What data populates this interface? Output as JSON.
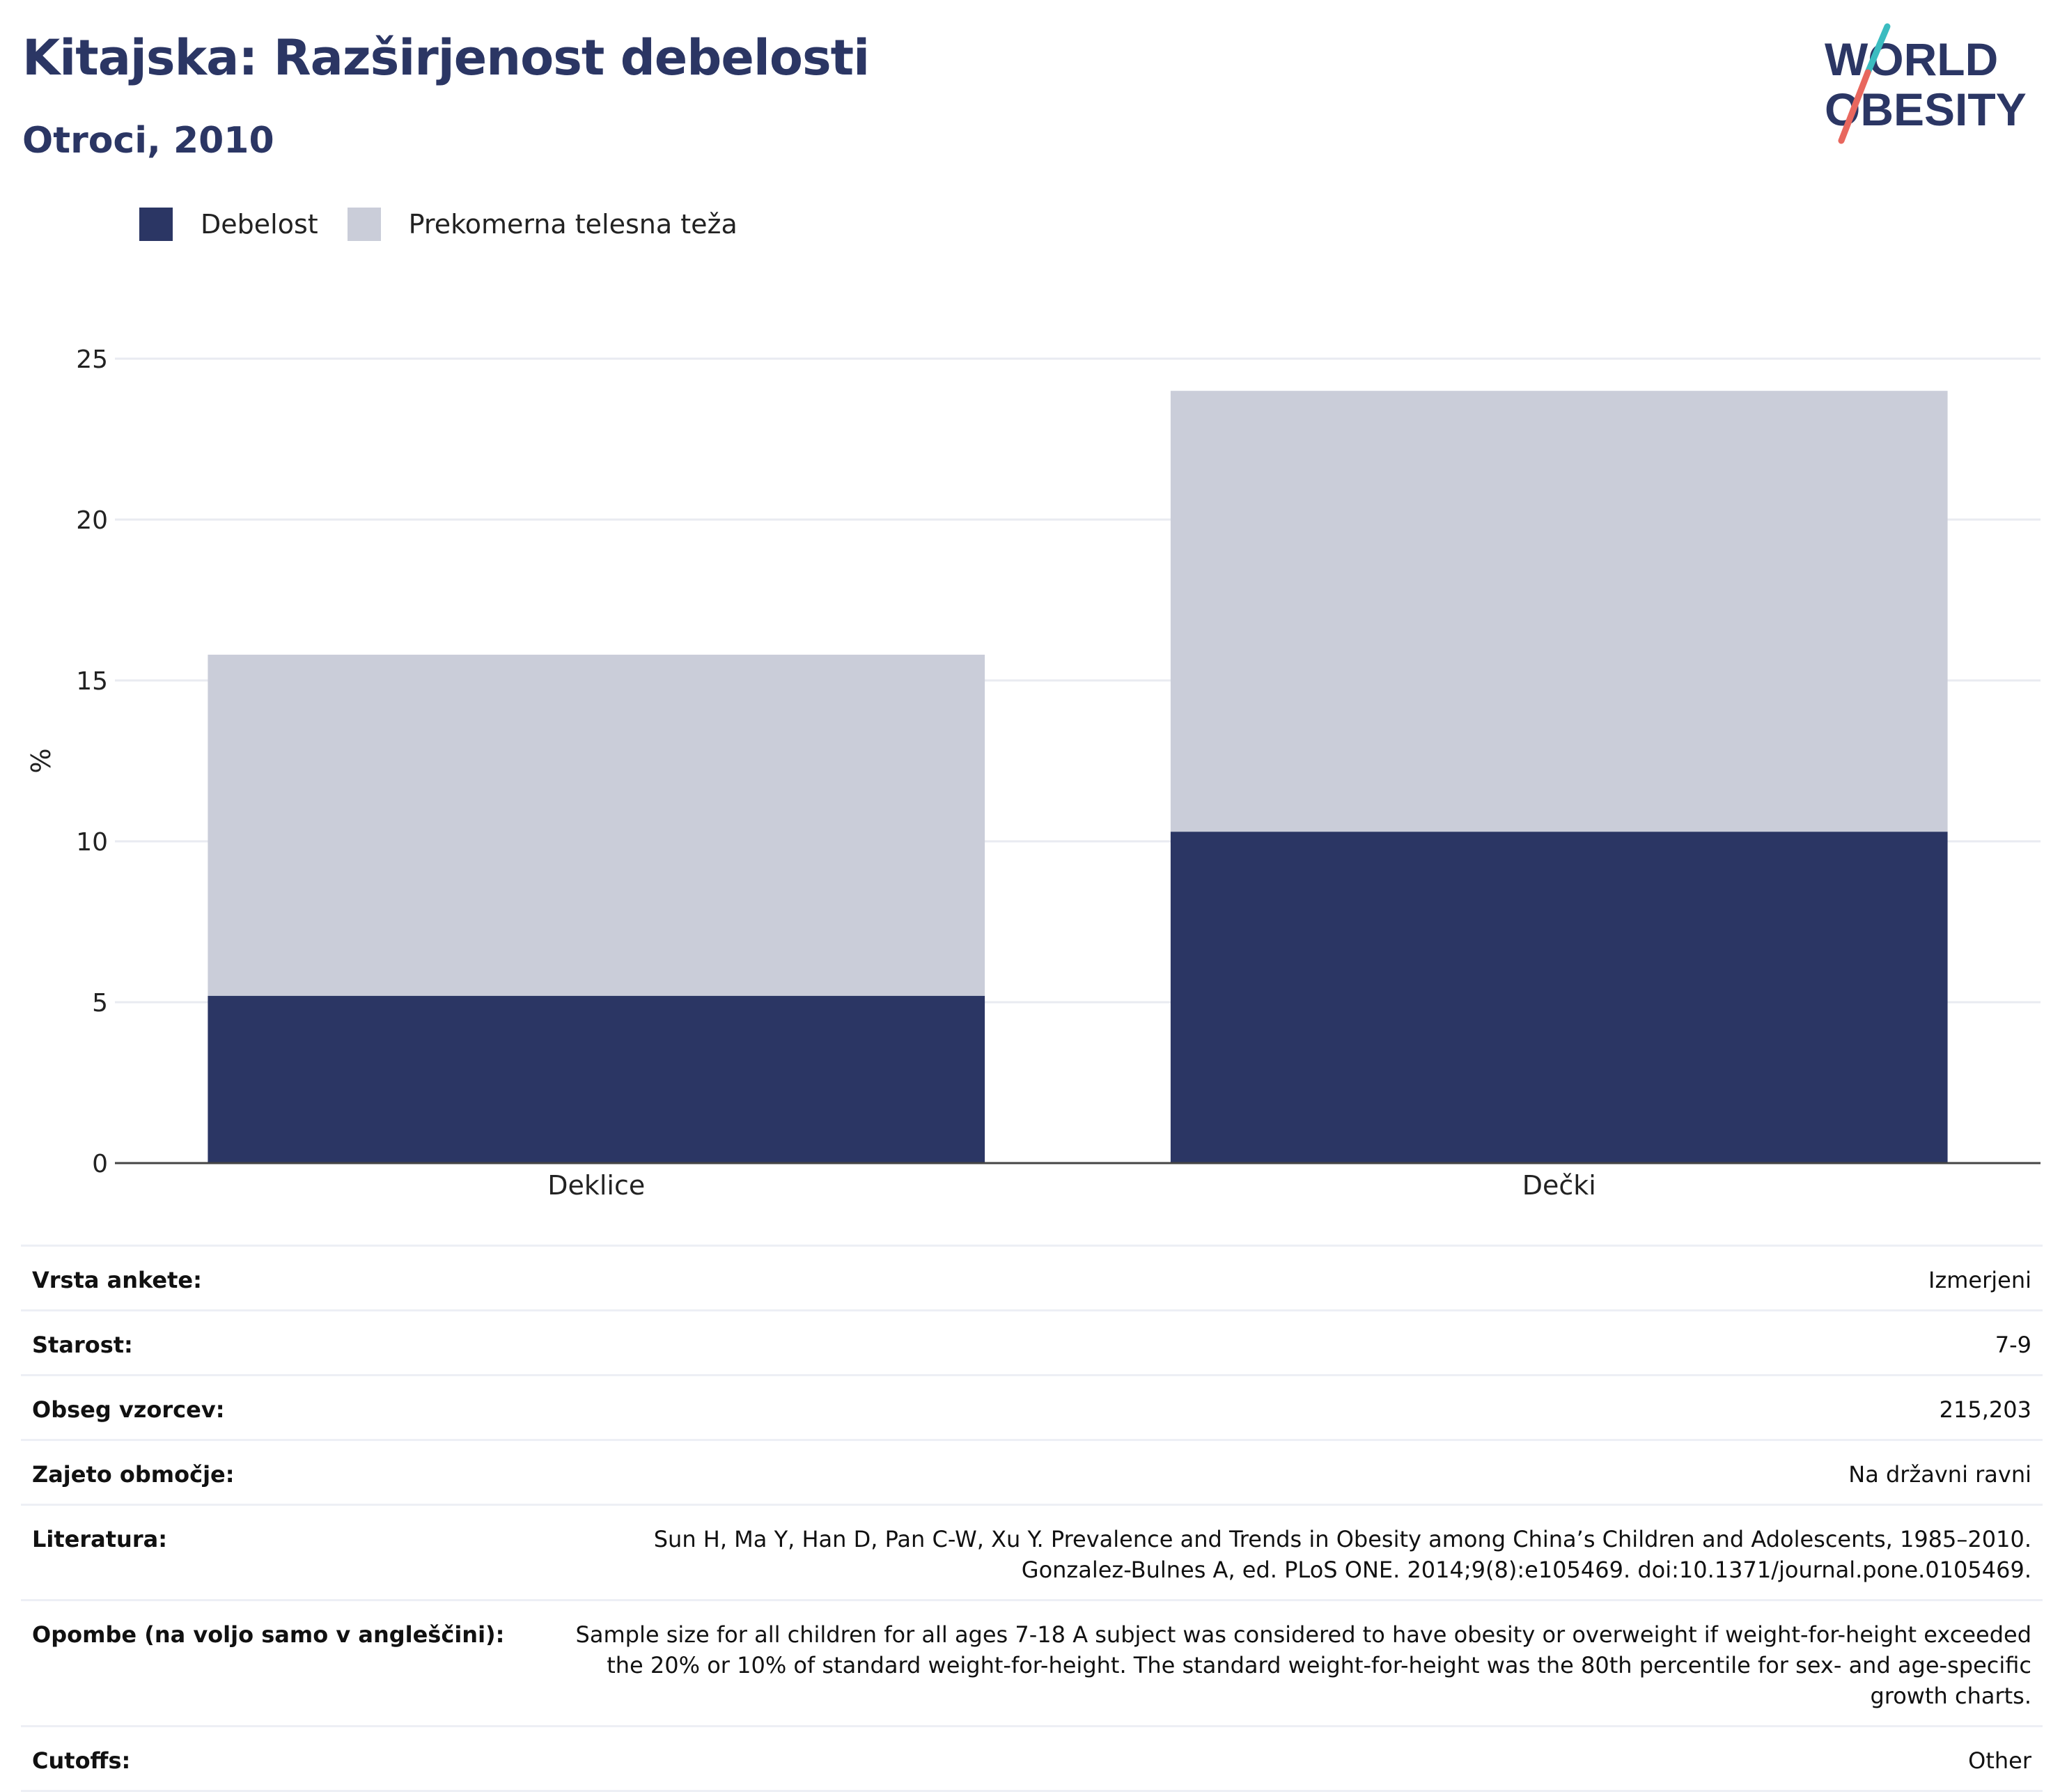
{
  "header": {
    "title": "Kitajska: Razširjenost debelosti",
    "subtitle": "Otroci, 2010"
  },
  "logo": {
    "line1": "WORLD",
    "line2": "OBESITY",
    "colors": {
      "text": "#2b3664",
      "slash_red": "#e8675e",
      "slash_teal": "#3bbcc0"
    }
  },
  "legend": {
    "items": [
      {
        "label": "Debelost",
        "color": "#2b3664"
      },
      {
        "label": "Prekomerna telesna teža",
        "color": "#cacdd9"
      }
    ]
  },
  "chart_data": {
    "type": "bar",
    "stacked": true,
    "categories": [
      "Deklice",
      "Dečki"
    ],
    "series": [
      {
        "name": "Debelost",
        "values": [
          5.2,
          10.3
        ],
        "color": "#2b3664"
      },
      {
        "name": "Prekomerna telesna teža",
        "values": [
          10.6,
          13.7
        ],
        "color": "#cacdd9"
      }
    ],
    "ylabel": "%",
    "xlabel": "",
    "ylim": [
      0,
      25
    ],
    "yticks": [
      0,
      5,
      10,
      15,
      20,
      25
    ],
    "grid": true,
    "legend_position": "top-left"
  },
  "meta": {
    "rows": [
      {
        "key": "Vrsta ankete:",
        "value": "Izmerjeni"
      },
      {
        "key": "Starost:",
        "value": "7-9"
      },
      {
        "key": "Obseg vzorcev:",
        "value": "215,203"
      },
      {
        "key": "Zajeto območje:",
        "value": "Na državni ravni"
      },
      {
        "key": "Literatura:",
        "value": "Sun H, Ma Y, Han D, Pan C-W, Xu Y. Prevalence and Trends in Obesity among China’s Children and Adolescents, 1985–2010. Gonzalez-Bulnes A, ed. PLoS ONE. 2014;9(8):e105469. doi:10.1371/journal.pone.0105469."
      },
      {
        "key": "Opombe (na voljo samo v angleščini):",
        "value": "Sample size for all children for all ages 7-18 A subject was considered to have obesity or overweight if weight-for-height exceeded the 20% or 10% of standard weight-for-height. The standard weight-for-height was the 80th percentile for sex- and age-specific growth charts."
      },
      {
        "key": "Cutoffs:",
        "value": "Other"
      }
    ]
  }
}
